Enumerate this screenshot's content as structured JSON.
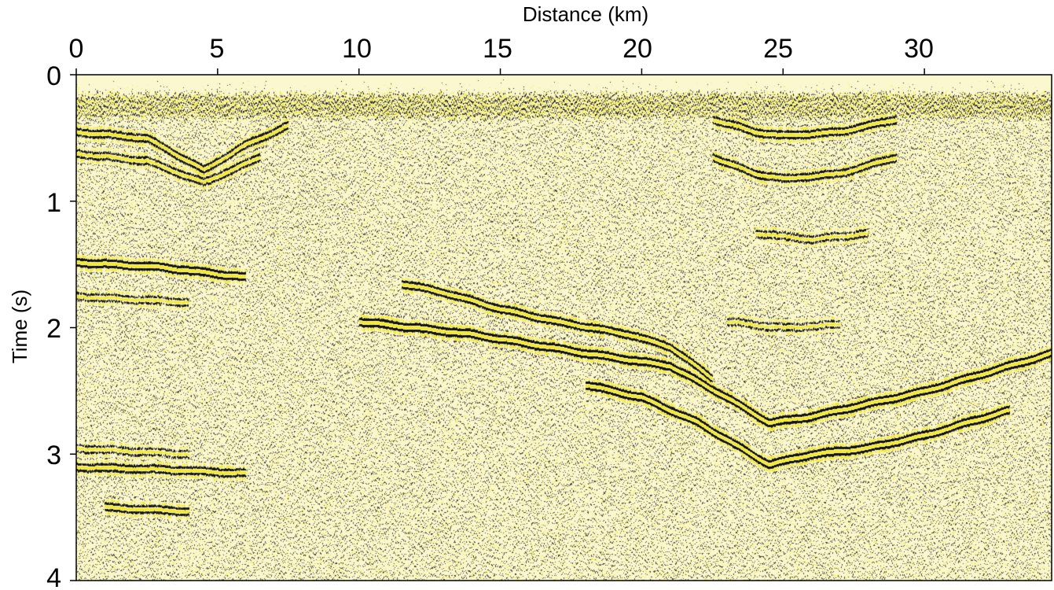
{
  "chart_data": {
    "type": "heatmap",
    "subtype": "seismic-section-variable-density",
    "title": "",
    "xlabel": "Distance (km)",
    "ylabel": "Time (s)",
    "x_axis_position": "top",
    "y_direction": "down",
    "xlim": [
      0,
      34.5
    ],
    "ylim": [
      0,
      4
    ],
    "xticks": [
      0,
      5,
      10,
      15,
      20,
      25,
      30
    ],
    "xtick_labels": [
      "0",
      "5",
      "10",
      "15",
      "20",
      "25",
      "30"
    ],
    "yticks": [
      0,
      1,
      2,
      3,
      4
    ],
    "ytick_labels": [
      "0",
      "1",
      "2",
      "3",
      "4"
    ],
    "grid": false,
    "legend": "none",
    "colors": {
      "positive": "#f5ea1e",
      "negative": "#111111",
      "background": "#fbf7cf"
    },
    "first_arrival_time_s": 0.15,
    "reflectors": [
      {
        "points": [
          [
            0.0,
            0.45
          ],
          [
            2.5,
            0.5
          ],
          [
            4.5,
            0.75
          ],
          [
            6.0,
            0.55
          ],
          [
            7.5,
            0.4
          ]
        ],
        "strength": 0.7
      },
      {
        "points": [
          [
            0.0,
            0.62
          ],
          [
            2.5,
            0.68
          ],
          [
            4.5,
            0.85
          ],
          [
            6.5,
            0.65
          ]
        ],
        "strength": 0.6
      },
      {
        "points": [
          [
            0.0,
            1.48
          ],
          [
            3.0,
            1.52
          ],
          [
            6.0,
            1.6
          ]
        ],
        "strength": 0.9
      },
      {
        "points": [
          [
            0.0,
            1.75
          ],
          [
            4.0,
            1.8
          ]
        ],
        "strength": 0.5
      },
      {
        "points": [
          [
            11.5,
            1.65
          ],
          [
            13.0,
            1.72
          ],
          [
            15.0,
            1.85
          ],
          [
            17.0,
            1.95
          ],
          [
            19.5,
            2.05
          ],
          [
            21.0,
            2.15
          ],
          [
            22.5,
            2.4
          ]
        ],
        "strength": 0.8
      },
      {
        "points": [
          [
            10.0,
            1.95
          ],
          [
            14.0,
            2.05
          ],
          [
            18.0,
            2.2
          ],
          [
            21.0,
            2.3
          ],
          [
            23.0,
            2.55
          ],
          [
            24.5,
            2.75
          ],
          [
            26.0,
            2.7
          ],
          [
            28.0,
            2.6
          ],
          [
            30.0,
            2.5
          ],
          [
            34.5,
            2.2
          ]
        ],
        "strength": 1.0
      },
      {
        "points": [
          [
            18.0,
            2.45
          ],
          [
            20.0,
            2.55
          ],
          [
            22.0,
            2.75
          ],
          [
            23.5,
            2.95
          ],
          [
            24.5,
            3.08
          ],
          [
            26.0,
            3.0
          ],
          [
            28.0,
            2.95
          ],
          [
            30.0,
            2.85
          ],
          [
            33.0,
            2.65
          ]
        ],
        "strength": 1.0
      },
      {
        "points": [
          [
            22.5,
            0.35
          ],
          [
            24.0,
            0.45
          ],
          [
            25.0,
            0.48
          ],
          [
            27.0,
            0.45
          ],
          [
            29.0,
            0.35
          ]
        ],
        "strength": 0.7
      },
      {
        "points": [
          [
            22.5,
            0.65
          ],
          [
            24.0,
            0.78
          ],
          [
            25.0,
            0.82
          ],
          [
            27.0,
            0.78
          ],
          [
            29.0,
            0.65
          ]
        ],
        "strength": 0.7
      },
      {
        "points": [
          [
            24.0,
            1.25
          ],
          [
            26.0,
            1.3
          ],
          [
            28.0,
            1.25
          ]
        ],
        "strength": 0.5
      },
      {
        "points": [
          [
            23.0,
            1.95
          ],
          [
            25.0,
            2.0
          ],
          [
            27.0,
            1.97
          ]
        ],
        "strength": 0.5
      },
      {
        "points": [
          [
            0.0,
            3.1
          ],
          [
            3.0,
            3.12
          ],
          [
            6.0,
            3.15
          ]
        ],
        "strength": 0.7
      },
      {
        "points": [
          [
            0.0,
            2.95
          ],
          [
            4.0,
            3.0
          ]
        ],
        "strength": 0.5
      },
      {
        "points": [
          [
            1.0,
            3.42
          ],
          [
            4.0,
            3.45
          ]
        ],
        "strength": 0.7
      }
    ]
  }
}
